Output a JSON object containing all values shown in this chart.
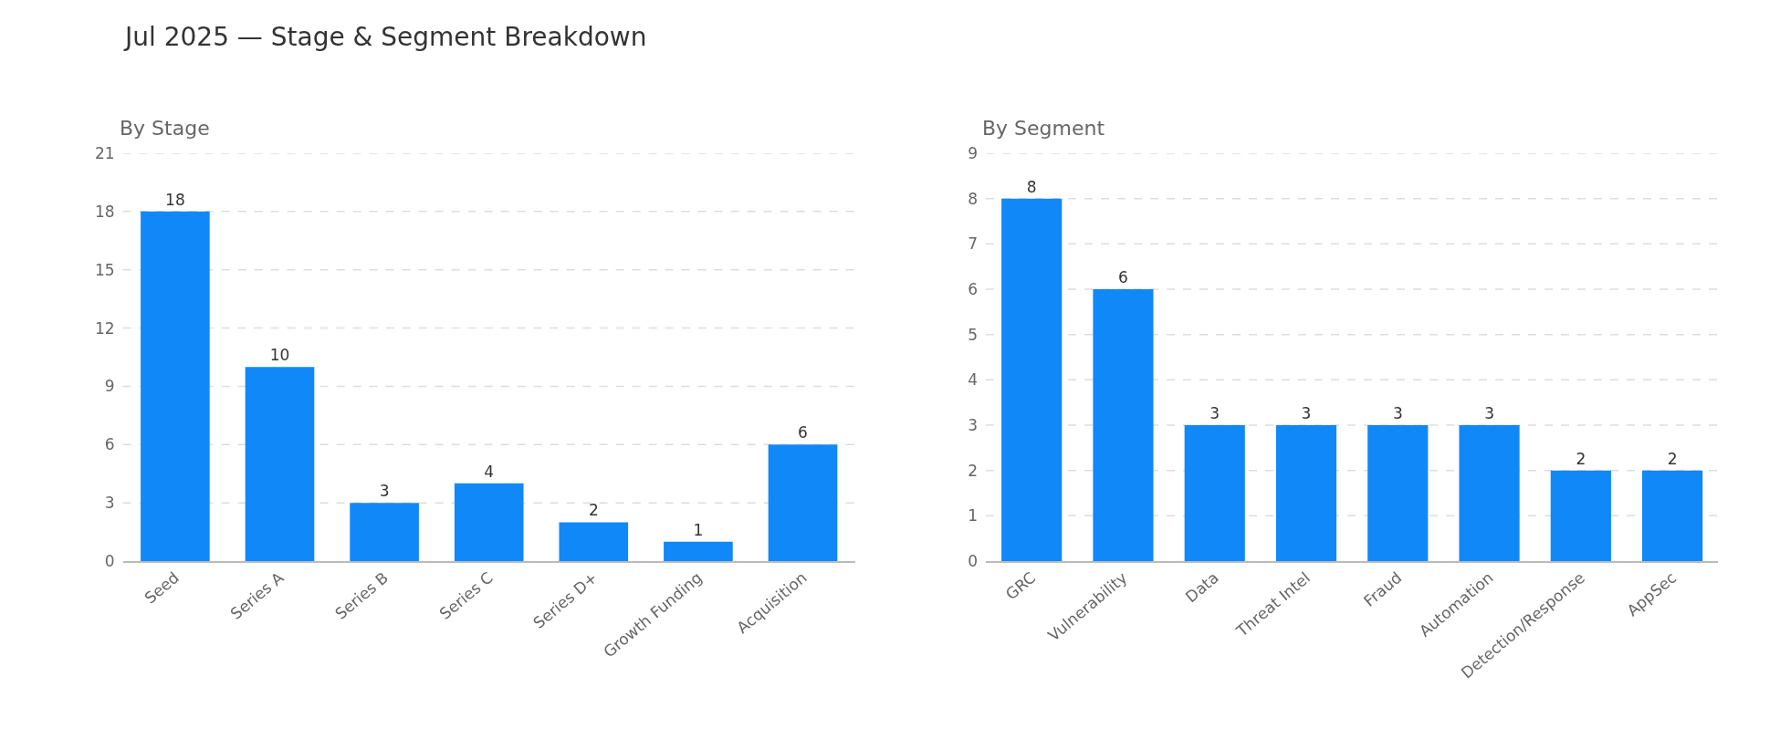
{
  "chart_data": [
    {
      "type": "bar",
      "title": "Jul 2025 — Stage & Segment Breakdown",
      "subtitle": "By Stage",
      "categories": [
        "Seed",
        "Series A",
        "Series B",
        "Series C",
        "Series D+",
        "Growth Funding",
        "Acquisition"
      ],
      "values": [
        18,
        10,
        3,
        4,
        2,
        1,
        6
      ],
      "color": "#1188f8",
      "ylim": [
        0,
        21
      ],
      "yticks": [
        0,
        3,
        6,
        9,
        12,
        15,
        18,
        21
      ],
      "grid": "y",
      "data_labels": true
    },
    {
      "type": "bar",
      "subtitle": "By Segment",
      "categories": [
        "GRC",
        "Vulnerability",
        "Data",
        "Threat Intel",
        "Fraud",
        "Automation",
        "Detection/Response",
        "AppSec"
      ],
      "values": [
        8,
        6,
        3,
        3,
        3,
        3,
        2,
        2
      ],
      "color": "#1188f8",
      "ylim": [
        0,
        9
      ],
      "yticks": [
        0,
        1,
        2,
        3,
        4,
        5,
        6,
        7,
        8,
        9
      ],
      "grid": "y",
      "data_labels": true
    }
  ]
}
